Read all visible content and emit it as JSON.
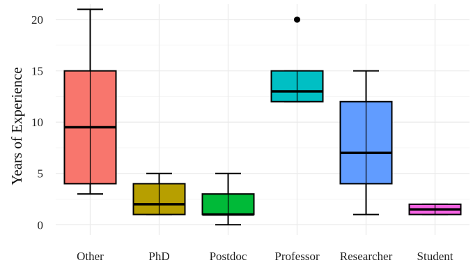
{
  "chart_data": {
    "type": "boxplot",
    "title": "",
    "xlabel": "",
    "ylabel": "Years of Experience",
    "ylim": [
      -1,
      21.5
    ],
    "yticks": [
      0,
      5,
      10,
      15,
      20
    ],
    "grid": true,
    "legend": "none",
    "categories": [
      "Other",
      "PhD",
      "Postdoc",
      "Professor",
      "Researcher",
      "Student"
    ],
    "boxes": [
      {
        "category": "Other",
        "min": 3,
        "q1": 4,
        "median": 9.5,
        "q3": 15,
        "max": 21,
        "outliers": [],
        "color": "#F8766D"
      },
      {
        "category": "PhD",
        "min": 1,
        "q1": 1,
        "median": 2,
        "q3": 4,
        "max": 5,
        "outliers": [],
        "color": "#B79F00"
      },
      {
        "category": "Postdoc",
        "min": 0,
        "q1": 1,
        "median": 1,
        "q3": 3,
        "max": 5,
        "outliers": [],
        "color": "#00BA38"
      },
      {
        "category": "Professor",
        "min": 12,
        "q1": 12,
        "median": 13,
        "q3": 15,
        "max": 15,
        "outliers": [
          20
        ],
        "color": "#00BFC4"
      },
      {
        "category": "Researcher",
        "min": 1,
        "q1": 4,
        "median": 7,
        "q3": 12,
        "max": 15,
        "outliers": [],
        "color": "#619CFF"
      },
      {
        "category": "Student",
        "min": 1,
        "q1": 1,
        "median": 1.5,
        "q3": 2,
        "max": 2,
        "outliers": [],
        "color": "#F564E3"
      }
    ]
  }
}
